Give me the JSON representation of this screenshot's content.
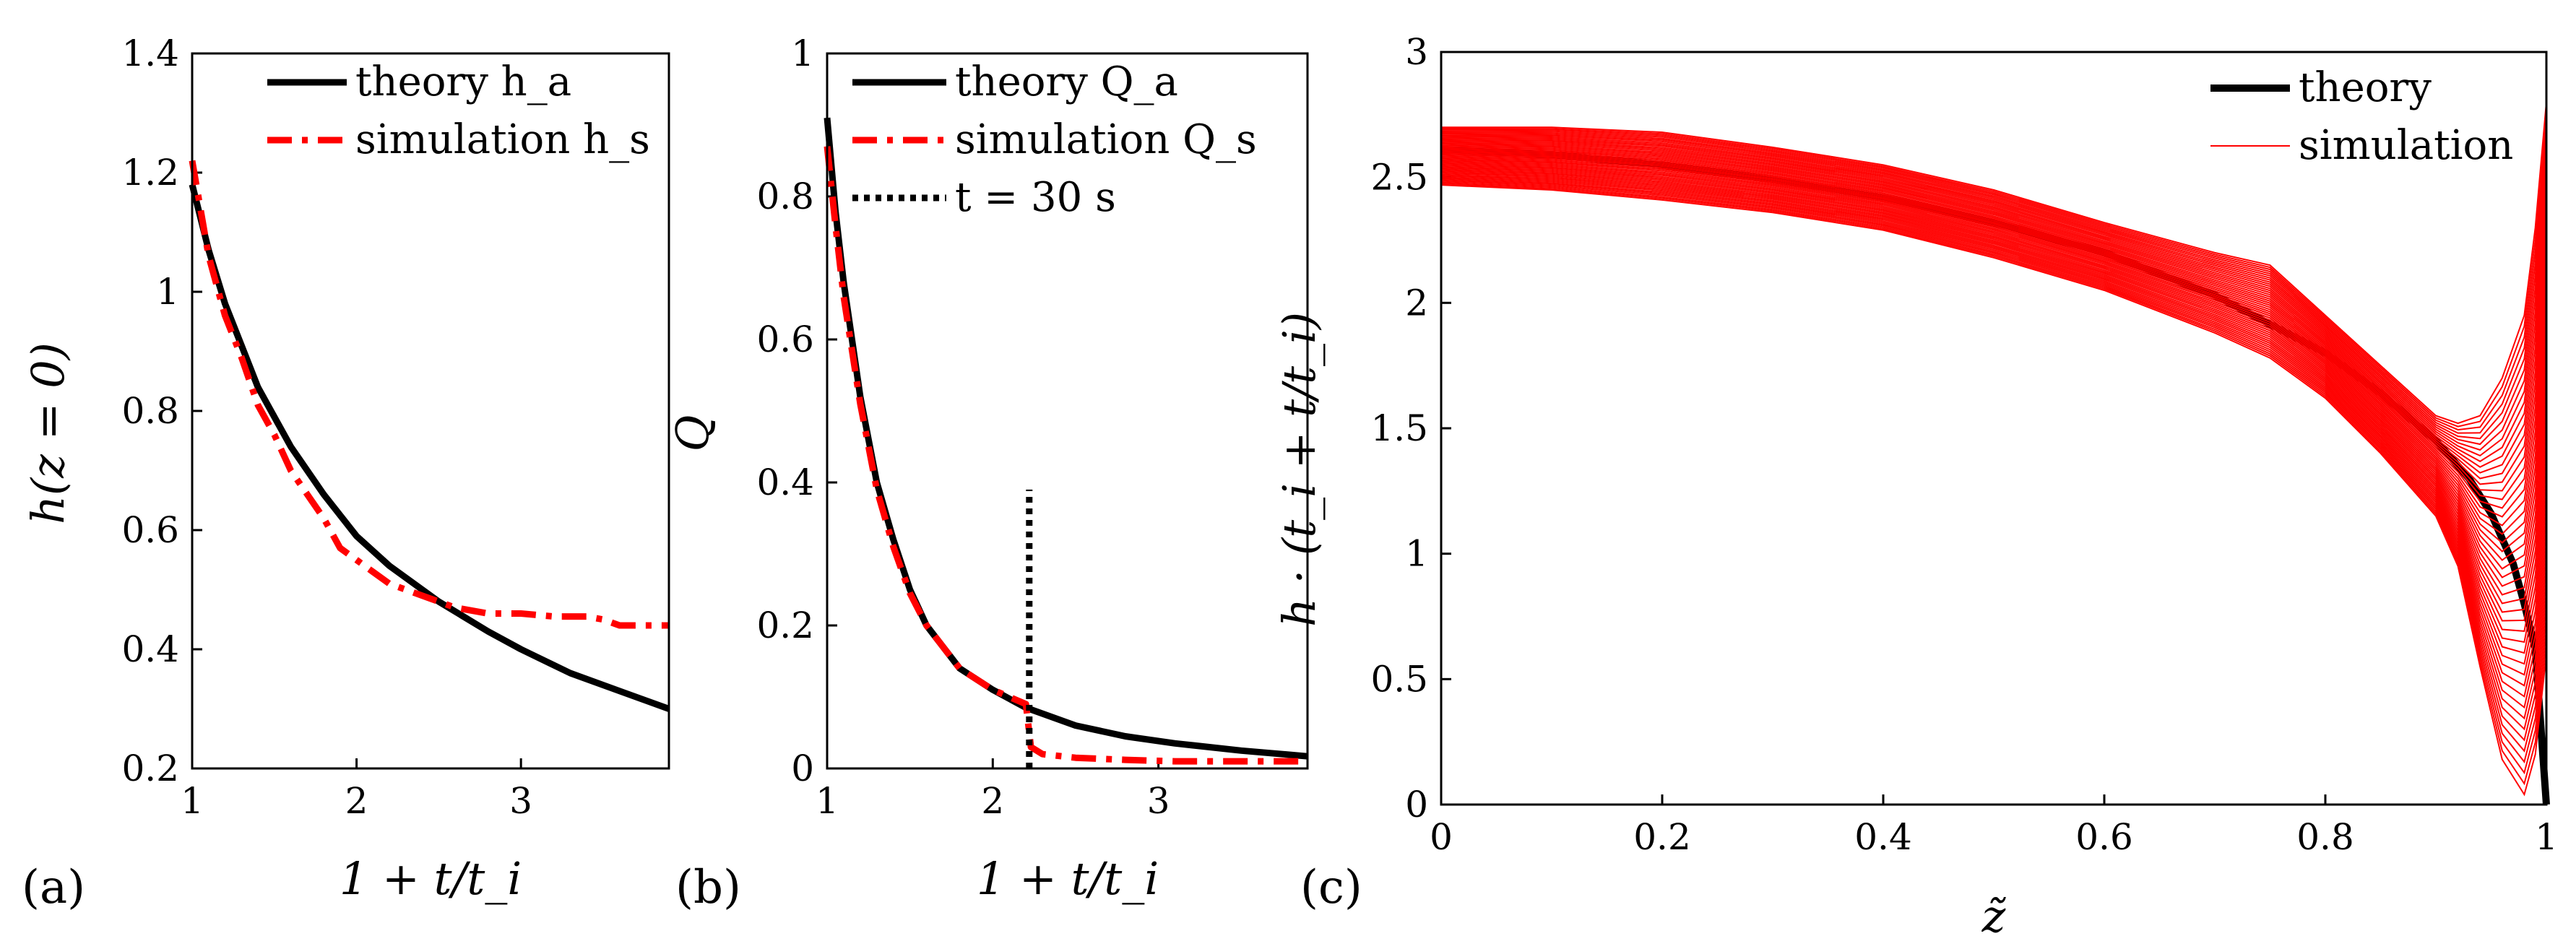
{
  "panels": [
    {
      "panel_label": "(a)",
      "chart_data": {
        "type": "line",
        "xlabel": "1 + t/t_i",
        "ylabel": "h(z = 0)",
        "xlim": [
          1,
          3.9
        ],
        "ylim": [
          0.2,
          1.4
        ],
        "xticks": [
          "1",
          "2",
          "3"
        ],
        "xtick_values": [
          1,
          2,
          3
        ],
        "yticks": [
          "0.2",
          "0.4",
          "0.6",
          "0.8",
          "1",
          "1.2",
          "1.4"
        ],
        "ytick_values": [
          0.2,
          0.4,
          0.6,
          0.8,
          1.0,
          1.2,
          1.4
        ],
        "legend": "top-right",
        "grid": false,
        "series": [
          {
            "name": "theory h_a",
            "style": "solid",
            "color": "#000000",
            "x": [
              1.0,
              1.1,
              1.2,
              1.3,
              1.4,
              1.5,
              1.6,
              1.8,
              2.0,
              2.2,
              2.5,
              2.8,
              3.0,
              3.3,
              3.6,
              3.9
            ],
            "y": [
              1.18,
              1.07,
              0.98,
              0.91,
              0.84,
              0.79,
              0.74,
              0.66,
              0.59,
              0.54,
              0.48,
              0.43,
              0.4,
              0.36,
              0.33,
              0.3
            ]
          },
          {
            "name": "simulation h_s",
            "style": "dashdot",
            "color": "#ff0000",
            "x": [
              1.0,
              1.05,
              1.1,
              1.2,
              1.3,
              1.4,
              1.5,
              1.6,
              1.7,
              1.8,
              1.9,
              2.0,
              2.1,
              2.2,
              2.3,
              2.4,
              2.5,
              2.6,
              2.8,
              3.0,
              3.2,
              3.4,
              3.5,
              3.6,
              3.9
            ],
            "y": [
              1.22,
              1.14,
              1.06,
              0.96,
              0.89,
              0.81,
              0.76,
              0.7,
              0.66,
              0.62,
              0.57,
              0.55,
              0.53,
              0.51,
              0.5,
              0.49,
              0.48,
              0.47,
              0.46,
              0.46,
              0.455,
              0.455,
              0.45,
              0.44,
              0.44
            ]
          }
        ]
      }
    },
    {
      "panel_label": "(b)",
      "chart_data": {
        "type": "line",
        "xlabel": "1 + t/t_i",
        "ylabel": "Q",
        "xlim": [
          1,
          3.9
        ],
        "ylim": [
          0,
          1
        ],
        "xticks": [
          "1",
          "2",
          "3"
        ],
        "xtick_values": [
          1,
          2,
          3
        ],
        "yticks": [
          "0",
          "0.2",
          "0.4",
          "0.6",
          "0.8",
          "1"
        ],
        "ytick_values": [
          0,
          0.2,
          0.4,
          0.6,
          0.8,
          1.0
        ],
        "legend": "top-right",
        "grid": false,
        "series": [
          {
            "name": "theory Q_a",
            "style": "solid",
            "color": "#000000",
            "x": [
              1.0,
              1.05,
              1.1,
              1.2,
              1.3,
              1.4,
              1.5,
              1.6,
              1.8,
              2.0,
              2.2,
              2.5,
              2.8,
              3.1,
              3.5,
              3.9
            ],
            "y": [
              0.91,
              0.78,
              0.68,
              0.52,
              0.4,
              0.32,
              0.25,
              0.2,
              0.14,
              0.11,
              0.085,
              0.06,
              0.045,
              0.035,
              0.025,
              0.017
            ]
          },
          {
            "name": "simulation Q_s",
            "style": "dashdot",
            "color": "#ff0000",
            "x": [
              1.0,
              1.05,
              1.1,
              1.2,
              1.3,
              1.4,
              1.5,
              1.6,
              1.8,
              2.0,
              2.2,
              2.23,
              2.3,
              2.5,
              2.8,
              3.1,
              3.5,
              3.9
            ],
            "y": [
              0.87,
              0.76,
              0.66,
              0.51,
              0.39,
              0.31,
              0.245,
              0.2,
              0.14,
              0.11,
              0.09,
              0.03,
              0.02,
              0.015,
              0.012,
              0.01,
              0.01,
              0.01
            ]
          },
          {
            "name": "t = 30 s",
            "style": "dotted",
            "color": "#000000",
            "x": [
              2.22,
              2.22
            ],
            "y": [
              0.0,
              0.39
            ]
          }
        ]
      }
    },
    {
      "panel_label": "(c)",
      "chart_data": {
        "type": "line",
        "xlabel": "z̃",
        "ylabel": "h · (t_i + t/t_i)",
        "xlim": [
          0,
          1
        ],
        "ylim": [
          0,
          3
        ],
        "xticks": [
          "0",
          "0.2",
          "0.4",
          "0.6",
          "0.8",
          "1"
        ],
        "xtick_values": [
          0,
          0.2,
          0.4,
          0.6,
          0.8,
          1.0
        ],
        "yticks": [
          "0",
          "0.5",
          "1",
          "1.5",
          "2",
          "2.5",
          "3"
        ],
        "ytick_values": [
          0,
          0.5,
          1.0,
          1.5,
          2.0,
          2.5,
          3.0
        ],
        "legend": "top-right",
        "grid": false,
        "simulation_curve_count": 45,
        "series": [
          {
            "name": "theory",
            "style": "solid",
            "color": "#000000",
            "x": [
              0.0,
              0.1,
              0.2,
              0.3,
              0.4,
              0.5,
              0.6,
              0.7,
              0.8,
              0.85,
              0.9,
              0.93,
              0.95,
              0.97,
              0.98,
              0.99,
              1.0
            ],
            "y": [
              2.61,
              2.59,
              2.55,
              2.49,
              2.42,
              2.32,
              2.2,
              2.03,
              1.8,
              1.64,
              1.45,
              1.3,
              1.16,
              0.96,
              0.8,
              0.62,
              0.0
            ]
          },
          {
            "name": "simulation",
            "style": "thin",
            "color": "#ff0000",
            "x": [
              0.0,
              0.1,
              0.2,
              0.3,
              0.4,
              0.5,
              0.6,
              0.7,
              0.75,
              0.8,
              0.85,
              0.9,
              0.92,
              0.94,
              0.96,
              0.98,
              0.99,
              1.0
            ],
            "y_min": [
              2.47,
              2.45,
              2.41,
              2.36,
              2.29,
              2.18,
              2.05,
              1.88,
              1.78,
              1.62,
              1.4,
              1.15,
              0.95,
              0.55,
              0.18,
              0.04,
              0.2,
              0.6
            ],
            "y_max": [
              2.7,
              2.7,
              2.68,
              2.62,
              2.55,
              2.45,
              2.32,
              2.2,
              2.15,
              1.95,
              1.75,
              1.55,
              1.52,
              1.55,
              1.7,
              1.95,
              2.3,
              2.8
            ]
          }
        ]
      }
    }
  ],
  "colors": {
    "theory": "#000000",
    "simulation": "#ff0000"
  }
}
